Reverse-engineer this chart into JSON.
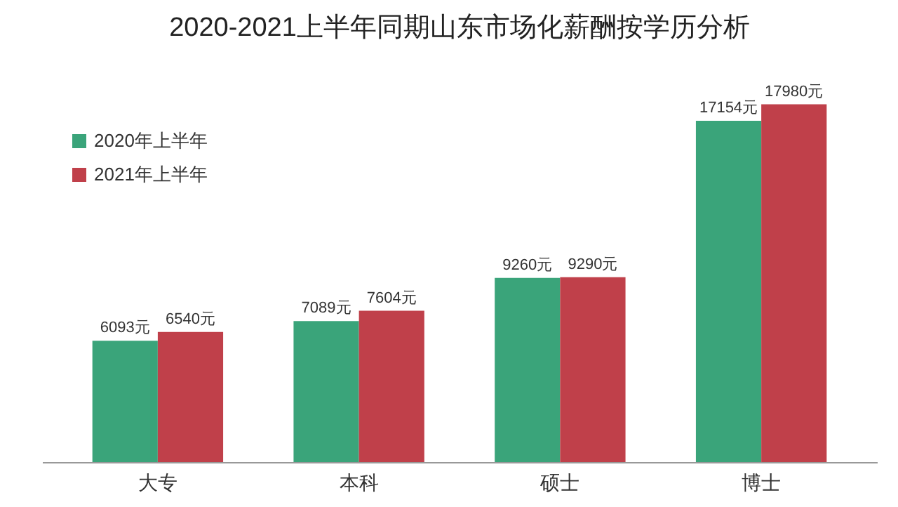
{
  "chart_data": {
    "type": "bar",
    "title": "2020-2021上半年同期山东市场化薪酬按学历分析",
    "categories": [
      "大专",
      "本科",
      "硕士",
      "博士"
    ],
    "series": [
      {
        "name": "2020年上半年",
        "color": "#3aa47a",
        "values": [
          6093,
          7089,
          9260,
          17154
        ],
        "value_labels": [
          "6093元",
          "7089元",
          "9260元",
          "17154元"
        ]
      },
      {
        "name": "2021年上半年",
        "color": "#c0404a",
        "values": [
          6540,
          7604,
          9290,
          17980
        ],
        "value_labels": [
          "6540元",
          "7604元",
          "9290元",
          "17980元"
        ]
      }
    ],
    "legend": "top left",
    "grid": false
  }
}
